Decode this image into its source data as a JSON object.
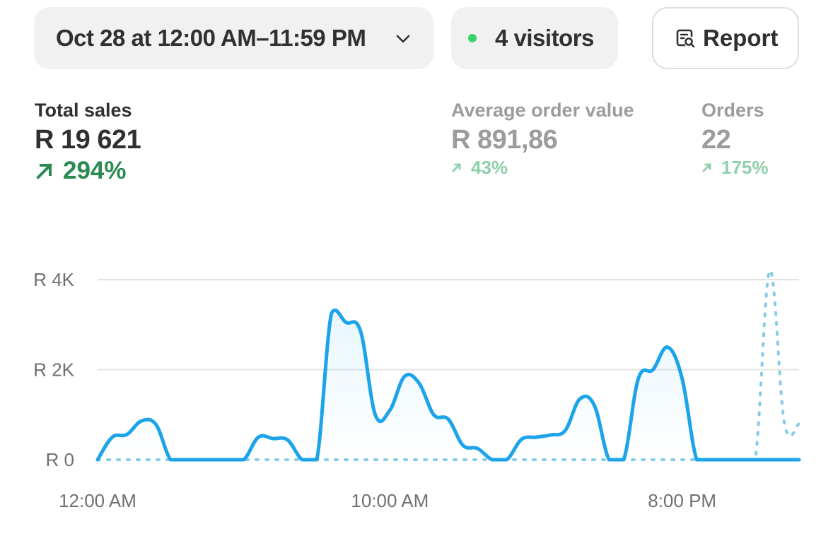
{
  "filters": {
    "date_range": "Oct 28 at 12:00 AM–11:59 PM",
    "visitors": "4 visitors",
    "report_label": "Report"
  },
  "metrics": {
    "total_sales": {
      "label": "Total sales",
      "value": "R 19 621",
      "change": "294%"
    },
    "average_order_value": {
      "label": "Average order value",
      "value": "R 891,86",
      "change": "43%"
    },
    "orders": {
      "label": "Orders",
      "value": "22",
      "change": "175%"
    }
  },
  "colors": {
    "primary_series": "#1ca4ea",
    "comparison_series": "#86cbe8",
    "positive": "#2a8a52",
    "live_dot": "#3ad36a"
  },
  "chart_data": {
    "type": "line",
    "y_ticks": [
      "R 0",
      "R 2K",
      "R 4K"
    ],
    "x_ticks": [
      "12:00 AM",
      "10:00 AM",
      "8:00 PM"
    ],
    "x_range": [
      0,
      24
    ],
    "y_range": [
      0,
      4000
    ],
    "grid": true,
    "series": [
      {
        "style": "solid",
        "x": [
          0,
          0.5,
          1,
          1.5,
          2,
          2.5,
          3,
          3.5,
          4,
          4.5,
          5,
          5.5,
          6,
          6.5,
          7,
          7.5,
          8,
          8.5,
          9,
          9.5,
          10,
          10.5,
          11,
          11.5,
          12,
          12.5,
          13,
          13.5,
          14,
          14.5,
          15,
          15.5,
          16,
          16.5,
          17,
          17.5,
          18,
          18.5,
          19,
          19.5,
          20,
          20.5,
          21,
          21.5,
          22,
          22.5,
          23,
          23.5
        ],
        "values": [
          0,
          500,
          560,
          860,
          780,
          0,
          0,
          0,
          0,
          0,
          0,
          500,
          470,
          440,
          0,
          0,
          3250,
          3050,
          2850,
          1000,
          1100,
          1850,
          1700,
          1000,
          900,
          320,
          250,
          0,
          0,
          450,
          500,
          550,
          650,
          1350,
          1200,
          0,
          0,
          1800,
          2000,
          2500,
          1800,
          0,
          0,
          0,
          0,
          0,
          0,
          0
        ]
      },
      {
        "style": "dotted",
        "x": [
          0,
          0.5,
          1,
          1.5,
          2,
          2.5,
          3,
          3.5,
          4,
          4.5,
          5,
          5.5,
          6,
          6.5,
          7,
          7.5,
          8,
          8.5,
          9,
          9.5,
          10,
          10.5,
          11,
          11.5,
          12,
          12.5,
          13,
          13.5,
          14,
          14.5,
          15,
          15.5,
          16,
          16.5,
          17,
          17.5,
          18,
          18.5,
          19,
          19.5,
          20,
          20.5,
          21,
          21.5,
          22,
          22.5,
          23,
          23.5
        ],
        "values": [
          0,
          0,
          0,
          0,
          0,
          0,
          0,
          0,
          0,
          0,
          0,
          0,
          0,
          0,
          0,
          0,
          0,
          0,
          0,
          0,
          0,
          0,
          0,
          0,
          0,
          0,
          0,
          0,
          0,
          0,
          0,
          0,
          0,
          0,
          0,
          0,
          0,
          0,
          0,
          0,
          0,
          0,
          0,
          0,
          0,
          0,
          4200,
          800
        ]
      }
    ]
  }
}
